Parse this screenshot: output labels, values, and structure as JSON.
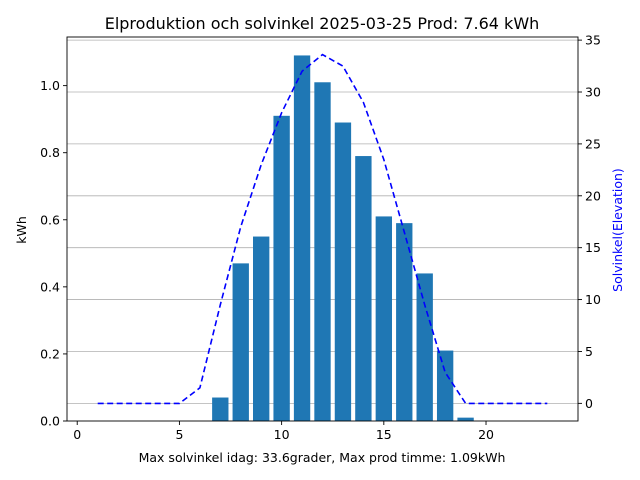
{
  "chart_data": {
    "type": "bar",
    "title": "Elproduktion och solvinkel 2025-03-25 Prod: 7.64 kWh",
    "xlabel": "Max solvinkel idag: 33.6grader, Max prod timme: 1.09kWh",
    "ylabel": "kWh",
    "y2label": "Solvinkel(Elevation)",
    "xlim": [
      -0.5,
      24.5
    ],
    "ylim": [
      0,
      1.145
    ],
    "y2lim": [
      -1.7,
      35.3
    ],
    "xticks": [
      0,
      5,
      10,
      15,
      20
    ],
    "yticks": [
      0.0,
      0.2,
      0.4,
      0.6,
      0.8,
      1.0
    ],
    "y2ticks": [
      0,
      5,
      10,
      15,
      20,
      25,
      30,
      35
    ],
    "grid": "horizontal lines on secondary axis",
    "colors": {
      "bars": "#1f77b4",
      "line": "#0000ff"
    },
    "series": [
      {
        "name": "kWh",
        "kind": "bar",
        "x": [
          7,
          8,
          9,
          10,
          11,
          12,
          13,
          14,
          15,
          16,
          17,
          18,
          19
        ],
        "values": [
          0.07,
          0.47,
          0.55,
          0.91,
          1.09,
          1.01,
          0.89,
          0.79,
          0.61,
          0.59,
          0.44,
          0.21,
          0.01
        ]
      },
      {
        "name": "Solvinkel(Elevation)",
        "kind": "line",
        "style": "dashed",
        "x": [
          1,
          2,
          3,
          4,
          5,
          6,
          7,
          8,
          9,
          10,
          11,
          12,
          13,
          14,
          15,
          16,
          17,
          18,
          19,
          20,
          21,
          22,
          23
        ],
        "values": [
          0,
          0,
          0,
          0,
          0,
          1.5,
          9.5,
          17.0,
          23.0,
          28.0,
          32.0,
          33.6,
          32.5,
          29.0,
          23.5,
          16.5,
          9.5,
          3.0,
          0,
          0,
          0,
          0,
          0
        ]
      }
    ]
  }
}
